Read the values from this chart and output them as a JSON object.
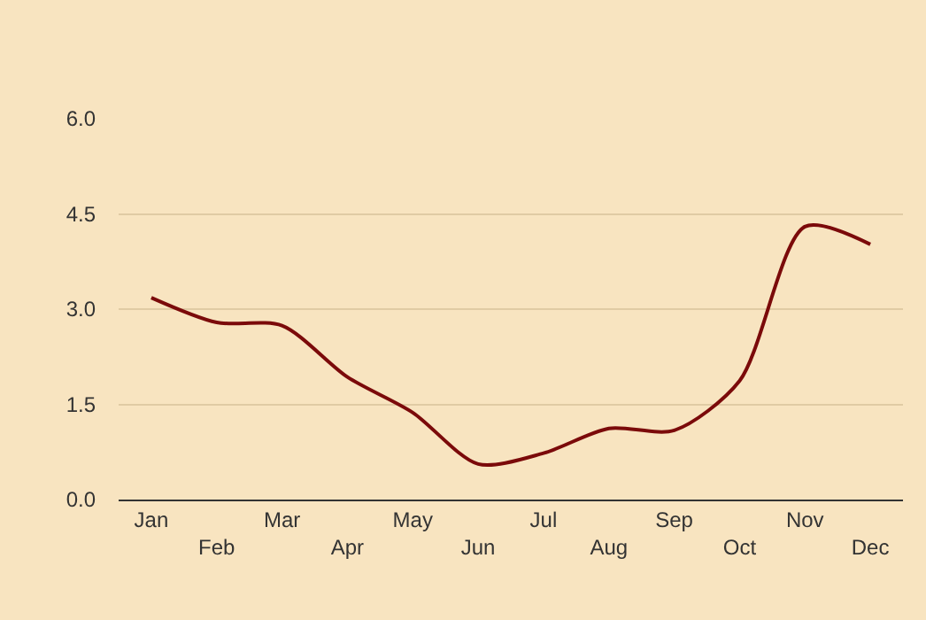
{
  "chart_data": {
    "type": "line",
    "categories": [
      "Jan",
      "Feb",
      "Mar",
      "Apr",
      "May",
      "Jun",
      "Jul",
      "Aug",
      "Sep",
      "Oct",
      "Nov",
      "Dec"
    ],
    "series": [
      {
        "color": "#7b0a0a",
        "values": [
          3.18,
          2.79,
          2.74,
          1.93,
          1.37,
          0.56,
          0.73,
          1.12,
          1.09,
          1.87,
          4.3,
          4.02
        ]
      }
    ],
    "ylim": [
      0,
      6
    ],
    "yticks": [
      {
        "value": 0,
        "label": "0.0"
      },
      {
        "value": 1.5,
        "label": "1.5"
      },
      {
        "value": 3,
        "label": "3.0"
      },
      {
        "value": 4.5,
        "label": "4.5"
      },
      {
        "value": 6,
        "label": "6.0"
      }
    ],
    "grid": "y",
    "marker": "none",
    "line_style": "solid"
  }
}
